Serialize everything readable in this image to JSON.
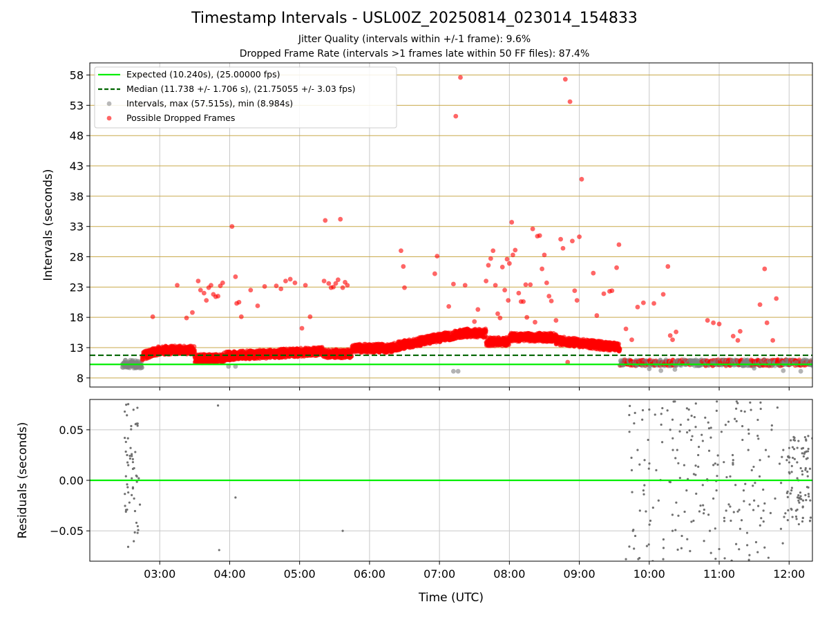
{
  "title": "Timestamp Intervals - USL00Z_20250814_023014_154833",
  "subtitles": [
    "Jitter Quality (intervals within +/-1 frame): 9.6%",
    "Dropped Frame Rate (intervals >1 frames late within 50 FF files): 87.4%"
  ],
  "colors": {
    "expected": "#00ee00",
    "median": "#006400",
    "intervals": "#808080",
    "dropped": "#ff0000",
    "major_grid": "#c8a94a",
    "grid": "#c8c8c8"
  },
  "chart_data": [
    {
      "type": "scatter",
      "ylabel": "Intervals (seconds)",
      "xlim": [
        "02:00",
        "12:20"
      ],
      "ylim": [
        6.5,
        60
      ],
      "yticks": [
        8,
        13,
        18,
        23,
        28,
        33,
        38,
        43,
        48,
        53,
        58
      ],
      "xticks": [
        "03:00",
        "04:00",
        "05:00",
        "06:00",
        "07:00",
        "08:00",
        "09:00",
        "10:00",
        "11:00",
        "12:00"
      ],
      "grid": true,
      "legend_position": "top-left",
      "legend": [
        "Expected (10.240s), (25.00000 fps)",
        "Median (11.738 +/- 1.706 s), (21.75055 +/- 3.03 fps)",
        "Intervals, max (57.515s), min (8.984s)",
        "Possible Dropped Frames"
      ],
      "expected_line": 10.24,
      "median_line": 11.738,
      "series": [
        {
          "name": "Possible Dropped Frames",
          "points": [
            [
              "02:54",
              18.1
            ],
            [
              "03:15",
              23.3
            ],
            [
              "03:23",
              17.9
            ],
            [
              "03:28",
              18.8
            ],
            [
              "03:33",
              24.0
            ],
            [
              "03:35",
              22.5
            ],
            [
              "03:38",
              22.0
            ],
            [
              "03:40",
              20.8
            ],
            [
              "03:42",
              22.9
            ],
            [
              "03:44",
              23.3
            ],
            [
              "03:46",
              21.8
            ],
            [
              "03:48",
              21.4
            ],
            [
              "03:50",
              21.5
            ],
            [
              "03:52",
              23.2
            ],
            [
              "03:54",
              23.7
            ],
            [
              "04:02",
              33.0
            ],
            [
              "04:05",
              24.7
            ],
            [
              "04:06",
              20.3
            ],
            [
              "04:08",
              20.5
            ],
            [
              "04:10",
              18.1
            ],
            [
              "04:18",
              22.5
            ],
            [
              "04:24",
              19.9
            ],
            [
              "04:30",
              23.1
            ],
            [
              "04:40",
              23.2
            ],
            [
              "04:44",
              22.7
            ],
            [
              "04:48",
              24.0
            ],
            [
              "04:52",
              24.3
            ],
            [
              "04:56",
              23.7
            ],
            [
              "05:02",
              16.2
            ],
            [
              "05:05",
              23.3
            ],
            [
              "05:09",
              18.1
            ],
            [
              "05:21",
              24.0
            ],
            [
              "05:22",
              34.0
            ],
            [
              "05:25",
              23.6
            ],
            [
              "05:27",
              22.9
            ],
            [
              "05:29",
              23.0
            ],
            [
              "05:31",
              23.6
            ],
            [
              "05:33",
              24.2
            ],
            [
              "05:35",
              34.2
            ],
            [
              "05:37",
              22.9
            ],
            [
              "05:39",
              23.8
            ],
            [
              "05:41",
              23.3
            ],
            [
              "06:27",
              29.0
            ],
            [
              "06:29",
              26.4
            ],
            [
              "06:30",
              22.9
            ],
            [
              "06:56",
              25.2
            ],
            [
              "06:58",
              28.1
            ],
            [
              "07:05",
              15.5
            ],
            [
              "07:08",
              19.8
            ],
            [
              "07:12",
              23.5
            ],
            [
              "07:14",
              51.2
            ],
            [
              "07:18",
              57.6
            ],
            [
              "07:22",
              23.3
            ],
            [
              "07:30",
              17.3
            ],
            [
              "07:33",
              19.3
            ],
            [
              "07:40",
              24.0
            ],
            [
              "07:42",
              26.6
            ],
            [
              "07:44",
              27.7
            ],
            [
              "07:46",
              29.0
            ],
            [
              "07:48",
              23.3
            ],
            [
              "07:50",
              18.6
            ],
            [
              "07:52",
              17.9
            ],
            [
              "07:54",
              26.3
            ],
            [
              "07:56",
              22.5
            ],
            [
              "07:58",
              27.6
            ],
            [
              "07:59",
              20.8
            ],
            [
              "08:00",
              26.9
            ],
            [
              "08:02",
              33.7
            ],
            [
              "08:03",
              28.3
            ],
            [
              "08:05",
              29.1
            ],
            [
              "08:08",
              22.0
            ],
            [
              "08:10",
              20.6
            ],
            [
              "08:12",
              20.6
            ],
            [
              "08:14",
              23.4
            ],
            [
              "08:15",
              18.0
            ],
            [
              "08:18",
              23.4
            ],
            [
              "08:20",
              32.6
            ],
            [
              "08:22",
              17.2
            ],
            [
              "08:24",
              31.4
            ],
            [
              "08:26",
              31.5
            ],
            [
              "08:28",
              26.0
            ],
            [
              "08:30",
              28.3
            ],
            [
              "08:32",
              23.7
            ],
            [
              "08:34",
              21.5
            ],
            [
              "08:36",
              20.7
            ],
            [
              "08:40",
              17.5
            ],
            [
              "08:44",
              30.9
            ],
            [
              "08:46",
              29.4
            ],
            [
              "08:48",
              57.3
            ],
            [
              "08:50",
              10.6
            ],
            [
              "08:52",
              53.6
            ],
            [
              "08:54",
              30.6
            ],
            [
              "08:56",
              22.4
            ],
            [
              "08:58",
              20.8
            ],
            [
              "09:00",
              31.3
            ],
            [
              "09:02",
              40.8
            ],
            [
              "09:12",
              25.3
            ],
            [
              "09:15",
              18.3
            ],
            [
              "09:21",
              21.9
            ],
            [
              "09:26",
              22.3
            ],
            [
              "09:28",
              22.4
            ],
            [
              "09:32",
              26.2
            ],
            [
              "09:34",
              30.0
            ],
            [
              "09:40",
              16.1
            ],
            [
              "09:45",
              14.3
            ],
            [
              "09:50",
              19.7
            ],
            [
              "09:55",
              20.4
            ],
            [
              "10:04",
              20.3
            ],
            [
              "10:12",
              21.8
            ],
            [
              "10:16",
              26.4
            ],
            [
              "10:18",
              15.0
            ],
            [
              "10:20",
              14.3
            ],
            [
              "10:23",
              15.6
            ],
            [
              "10:50",
              17.5
            ],
            [
              "10:55",
              17.1
            ],
            [
              "11:00",
              16.9
            ],
            [
              "11:12",
              14.9
            ],
            [
              "11:16",
              14.2
            ],
            [
              "11:18",
              15.7
            ],
            [
              "11:35",
              20.1
            ],
            [
              "11:39",
              26.0
            ],
            [
              "11:41",
              17.1
            ],
            [
              "11:46",
              14.2
            ],
            [
              "11:49",
              21.1
            ]
          ]
        },
        {
          "name": "Intervals (gray, below expected)",
          "points": [
            [
              "07:12",
              9.1
            ],
            [
              "07:16",
              9.1
            ],
            [
              "03:59",
              9.9
            ],
            [
              "04:05",
              9.9
            ],
            [
              "11:55",
              9.2
            ],
            [
              "12:10",
              9.1
            ],
            [
              "10:10",
              9.2
            ],
            [
              "10:22",
              9.4
            ],
            [
              "10:00",
              9.5
            ],
            [
              "11:30",
              9.6
            ]
          ]
        }
      ]
    },
    {
      "type": "scatter",
      "xlabel": "Time (UTC)",
      "ylabel": "Residuals (seconds)",
      "xlim": [
        "02:00",
        "12:20"
      ],
      "ylim": [
        -0.08,
        0.08
      ],
      "yticks": [
        "0.05",
        "0.00",
        "−0.05"
      ],
      "xticks": [
        "03:00",
        "04:00",
        "05:00",
        "06:00",
        "07:00",
        "08:00",
        "09:00",
        "10:00",
        "11:00",
        "12:00"
      ],
      "grid": true,
      "zero_line": 0.0,
      "series": [
        {
          "name": "Residuals",
          "points": [
            [
              "02:30",
              0.068
            ],
            [
              "02:30",
              0.042
            ],
            [
              "02:31",
              0.038
            ],
            [
              "02:32",
              0.025
            ],
            [
              "02:33",
              0.015
            ],
            [
              "02:31",
              0.004
            ],
            [
              "02:32",
              -0.004
            ],
            [
              "02:33",
              -0.012
            ],
            [
              "02:34",
              -0.022
            ],
            [
              "02:31",
              -0.031
            ],
            [
              "02:32",
              -0.029
            ],
            [
              "02:35",
              0.032
            ],
            [
              "02:36",
              0.024
            ],
            [
              "02:37",
              0.018
            ],
            [
              "02:38",
              0.012
            ],
            [
              "02:36",
              0.002
            ],
            [
              "02:37",
              -0.008
            ],
            [
              "02:38",
              -0.018
            ],
            [
              "02:40",
              0.056
            ],
            [
              "02:41",
              0.054
            ],
            [
              "02:40",
              -0.042
            ],
            [
              "02:41",
              -0.052
            ],
            [
              "02:42",
              0.002
            ],
            [
              "02:43",
              -0.024
            ],
            [
              "02:39",
              0.028
            ],
            [
              "03:50",
              0.074
            ],
            [
              "03:51",
              -0.069
            ],
            [
              "04:05",
              -0.017
            ],
            [
              "05:37",
              -0.05
            ],
            [
              "09:40",
              -0.078
            ],
            [
              "09:43",
              0.048
            ],
            [
              "09:45",
              0.01
            ],
            [
              "09:46",
              -0.05
            ],
            [
              "09:48",
              -0.055
            ],
            [
              "09:50",
              0.03
            ],
            [
              "09:52",
              -0.03
            ],
            [
              "09:54",
              0.06
            ],
            [
              "09:55",
              -0.01
            ],
            [
              "09:56",
              0.02
            ],
            [
              "09:58",
              -0.065
            ],
            [
              "09:59",
              0.04
            ],
            [
              "10:00",
              0.07
            ],
            [
              "10:01",
              -0.04
            ],
            [
              "10:03",
              -0.08
            ],
            [
              "10:05",
              0.065
            ],
            [
              "10:06",
              0.01
            ],
            [
              "10:08",
              -0.02
            ],
            [
              "10:12",
              -0.078
            ],
            [
              "10:18",
              0.05
            ],
            [
              "10:20",
              -0.05
            ],
            [
              "10:22",
              0.078
            ],
            [
              "10:24",
              0.03
            ],
            [
              "10:25",
              -0.035
            ],
            [
              "10:27",
              0.055
            ],
            [
              "10:28",
              -0.055
            ],
            [
              "10:30",
              0.015
            ],
            [
              "10:32",
              -0.01
            ],
            [
              "10:34",
              0.07
            ],
            [
              "10:35",
              -0.07
            ],
            [
              "10:36",
              0.04
            ],
            [
              "10:38",
              -0.04
            ],
            [
              "10:40",
              0.076
            ],
            [
              "10:42",
              0.025
            ],
            [
              "10:44",
              -0.025
            ],
            [
              "10:45",
              0.045
            ],
            [
              "10:47",
              -0.06
            ],
            [
              "10:48",
              0.062
            ],
            [
              "10:50",
              0.0
            ],
            [
              "10:52",
              -0.05
            ],
            [
              "10:53",
              0.052
            ],
            [
              "10:55",
              -0.018
            ],
            [
              "10:58",
              0.078
            ],
            [
              "11:00",
              -0.068
            ],
            [
              "11:02",
              0.048
            ],
            [
              "11:04",
              0.018
            ],
            [
              "11:06",
              -0.03
            ],
            [
              "11:08",
              0.058
            ],
            [
              "11:10",
              -0.04
            ],
            [
              "11:12",
              0.02
            ],
            [
              "11:15",
              0.078
            ],
            [
              "11:18",
              -0.048
            ],
            [
              "11:20",
              0.04
            ],
            [
              "11:21",
              -0.01
            ],
            [
              "11:22",
              0.068
            ],
            [
              "11:24",
              -0.052
            ],
            [
              "11:25",
              0.03
            ],
            [
              "11:26",
              -0.074
            ],
            [
              "11:28",
              0.01
            ],
            [
              "11:30",
              -0.02
            ],
            [
              "11:33",
              0.044
            ],
            [
              "11:35",
              0.02
            ],
            [
              "11:38",
              -0.03
            ],
            [
              "11:40",
              0.03
            ],
            [
              "11:45",
              0.05
            ],
            [
              "11:48",
              -0.018
            ],
            [
              "11:50",
              0.072
            ],
            [
              "11:53",
              -0.048
            ],
            [
              "11:55",
              0.03
            ],
            [
              "11:58",
              0.02
            ],
            [
              "12:00",
              0.008
            ],
            [
              "12:02",
              -0.01
            ],
            [
              "12:04",
              0.04
            ],
            [
              "12:06",
              -0.03
            ],
            [
              "12:08",
              0.0
            ],
            [
              "12:10",
              0.012
            ],
            [
              "12:12",
              -0.02
            ],
            [
              "12:14",
              0.028
            ],
            [
              "12:16",
              0.004
            ],
            [
              "12:18",
              -0.04
            ]
          ]
        }
      ]
    }
  ]
}
